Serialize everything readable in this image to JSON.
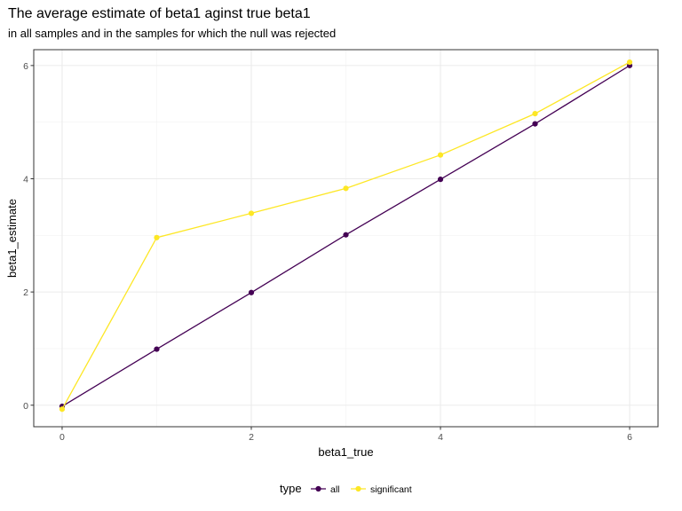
{
  "chart_data": {
    "type": "line",
    "title": "The average estimate of beta1 aginst true beta1",
    "subtitle": "in all samples and in the samples for which the null was rejected",
    "xlabel": "beta1_true",
    "ylabel": "beta1_estimate",
    "xlim": [
      -0.3,
      6.3
    ],
    "ylim": [
      -0.38,
      6.28
    ],
    "x_ticks": [
      0,
      2,
      4,
      6
    ],
    "x_tick_labels": [
      "0",
      "2",
      "4",
      "6"
    ],
    "y_ticks": [
      0,
      2,
      4,
      6
    ],
    "y_tick_labels": [
      "0",
      "2",
      "4",
      "6"
    ],
    "grid": true,
    "legend_position": "bottom",
    "legend_title": "type",
    "x": [
      0,
      1,
      2,
      3,
      4,
      5,
      6
    ],
    "series": [
      {
        "name": "all",
        "color": "#440154",
        "values": [
          -0.02,
          0.99,
          1.99,
          3.01,
          3.99,
          4.97,
          6.0
        ]
      },
      {
        "name": "significant",
        "color": "#FDE725",
        "values": [
          -0.07,
          2.96,
          3.39,
          3.83,
          4.42,
          5.15,
          6.06
        ]
      }
    ]
  }
}
